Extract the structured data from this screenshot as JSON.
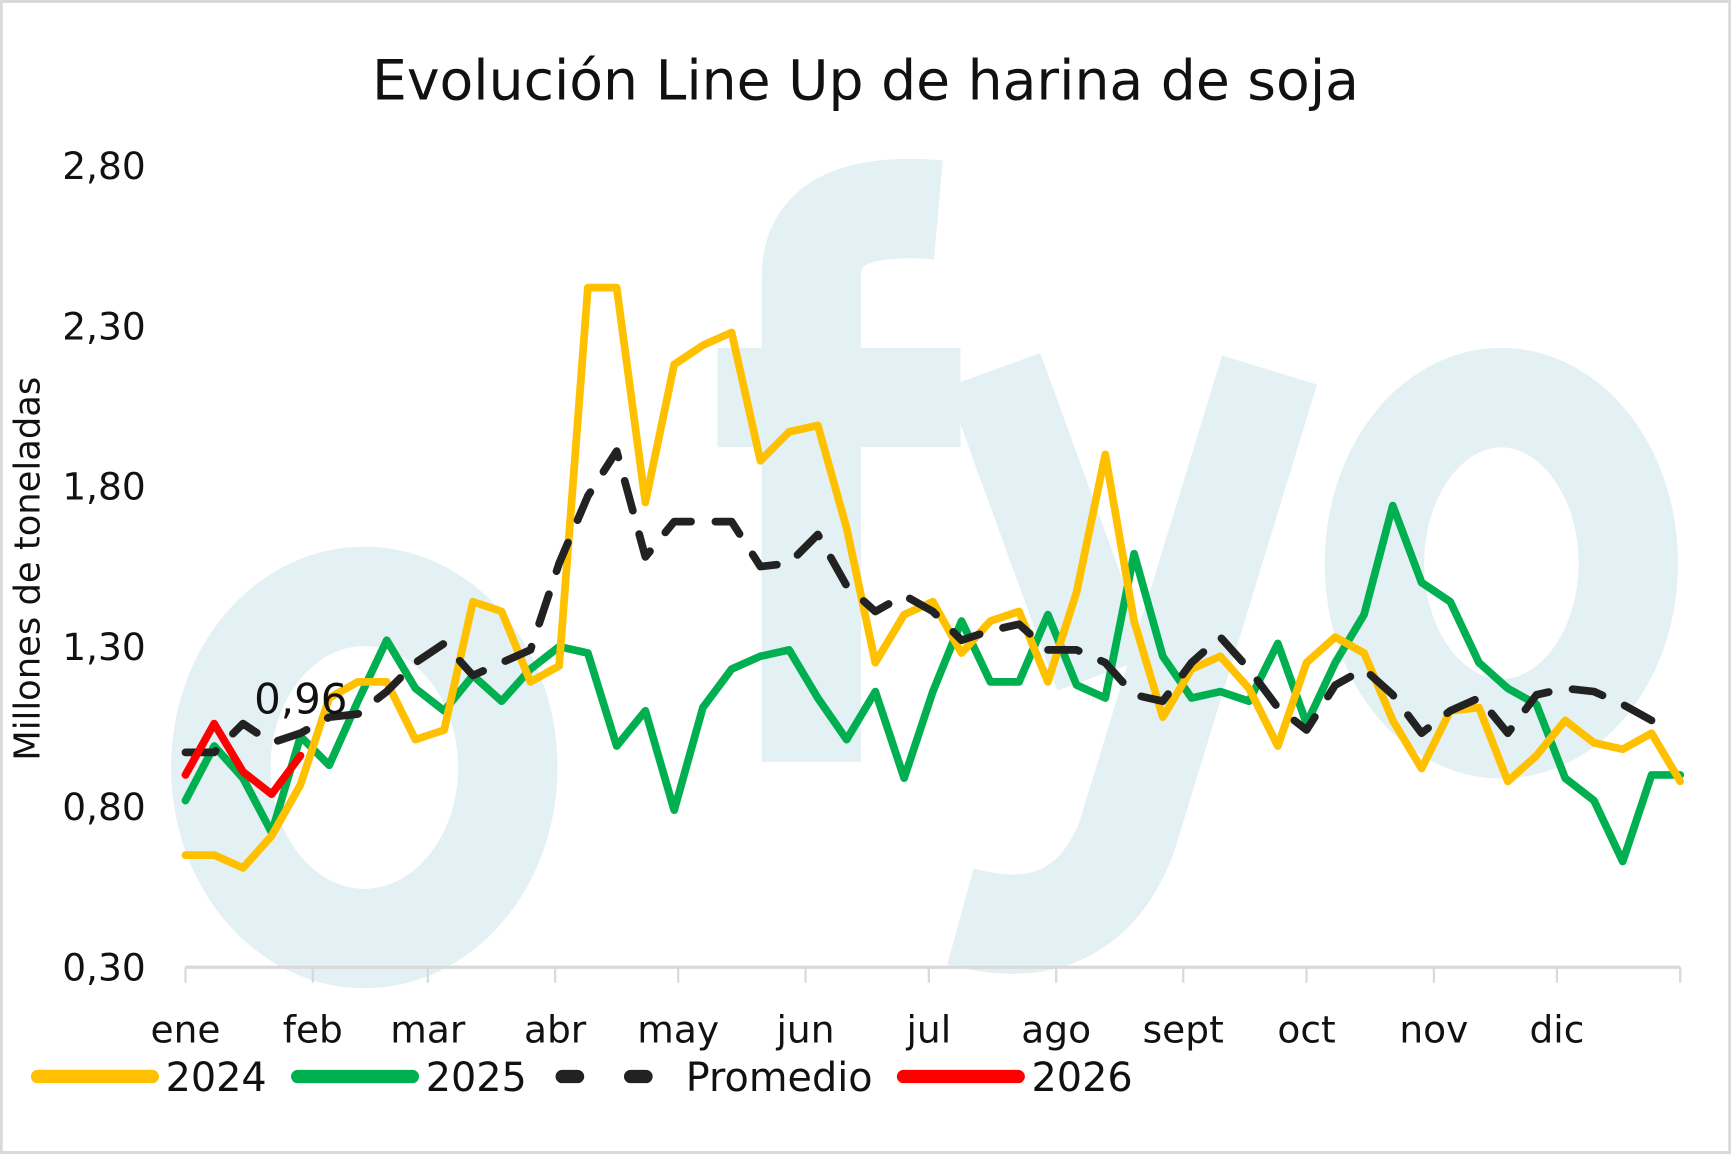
{
  "chart_data": {
    "type": "line",
    "title": "Evolución Line Up de harina de soja",
    "xlabel": "",
    "ylabel": "Millones de toneladas",
    "ylim": [
      0.3,
      2.8
    ],
    "yticks": [
      "0,30",
      "0,80",
      "1,30",
      "1,80",
      "2,30",
      "2,80"
    ],
    "ytick_values": [
      0.3,
      0.8,
      1.3,
      1.8,
      2.3,
      2.8
    ],
    "x_unit": "week of year",
    "xlim": [
      0,
      52
    ],
    "months": [
      "ene",
      "feb",
      "mar",
      "abr",
      "may",
      "jun",
      "jul",
      "ago",
      "sept",
      "oct",
      "nov",
      "dic"
    ],
    "month_start_weeks": [
      0,
      4.43,
      8.43,
      12.86,
      17.14,
      21.57,
      25.86,
      30.29,
      34.71,
      39.0,
      43.43,
      47.71
    ],
    "grid": false,
    "legend_position": "bottom-left",
    "watermark": "ofyo",
    "series": [
      {
        "name": "2024",
        "color": "#FFC000",
        "dashed": false,
        "values": [
          0.65,
          0.65,
          0.61,
          0.71,
          0.87,
          1.14,
          1.19,
          1.19,
          1.01,
          1.04,
          1.44,
          1.41,
          1.19,
          1.24,
          2.42,
          2.42,
          1.75,
          2.18,
          2.24,
          2.28,
          1.88,
          1.97,
          1.99,
          1.67,
          1.25,
          1.4,
          1.44,
          1.28,
          1.38,
          1.41,
          1.19,
          1.47,
          1.9,
          1.38,
          1.08,
          1.23,
          1.27,
          1.17,
          0.99,
          1.25,
          1.33,
          1.28,
          1.07,
          0.92,
          1.1,
          1.11,
          0.88,
          0.96,
          1.07,
          1.0,
          0.98,
          1.03,
          0.88
        ]
      },
      {
        "name": "2025",
        "color": "#00B050",
        "dashed": false,
        "values": [
          0.82,
          0.99,
          0.89,
          0.72,
          1.02,
          0.93,
          1.13,
          1.32,
          1.17,
          1.1,
          1.21,
          1.13,
          1.23,
          1.3,
          1.28,
          0.99,
          1.1,
          0.79,
          1.11,
          1.23,
          1.27,
          1.29,
          1.14,
          1.01,
          1.16,
          0.89,
          1.16,
          1.38,
          1.19,
          1.19,
          1.4,
          1.18,
          1.14,
          1.59,
          1.27,
          1.14,
          1.16,
          1.13,
          1.31,
          1.06,
          1.25,
          1.4,
          1.74,
          1.5,
          1.44,
          1.25,
          1.17,
          1.12,
          0.89,
          0.82,
          0.63,
          0.9,
          0.9
        ]
      },
      {
        "name": "Promedio",
        "color": "#222222",
        "dashed": true,
        "values": [
          0.97,
          0.97,
          1.06,
          1.0,
          1.03,
          1.08,
          1.09,
          1.16,
          1.25,
          1.31,
          1.21,
          1.25,
          1.29,
          1.56,
          1.77,
          1.91,
          1.58,
          1.69,
          1.69,
          1.69,
          1.55,
          1.56,
          1.65,
          1.49,
          1.41,
          1.46,
          1.41,
          1.32,
          1.35,
          1.37,
          1.29,
          1.29,
          1.25,
          1.15,
          1.13,
          1.25,
          1.33,
          1.23,
          1.11,
          1.04,
          1.18,
          1.23,
          1.15,
          1.03,
          1.1,
          1.14,
          1.03,
          1.15,
          1.17,
          1.16,
          1.12,
          1.07
        ]
      },
      {
        "name": "2026",
        "color": "#FF0000",
        "dashed": false,
        "values": [
          0.9,
          1.06,
          0.91,
          0.84,
          0.96
        ]
      }
    ],
    "annotations": [
      {
        "text": "0,96",
        "series": "2026",
        "week": 4,
        "value": 0.96
      }
    ]
  }
}
